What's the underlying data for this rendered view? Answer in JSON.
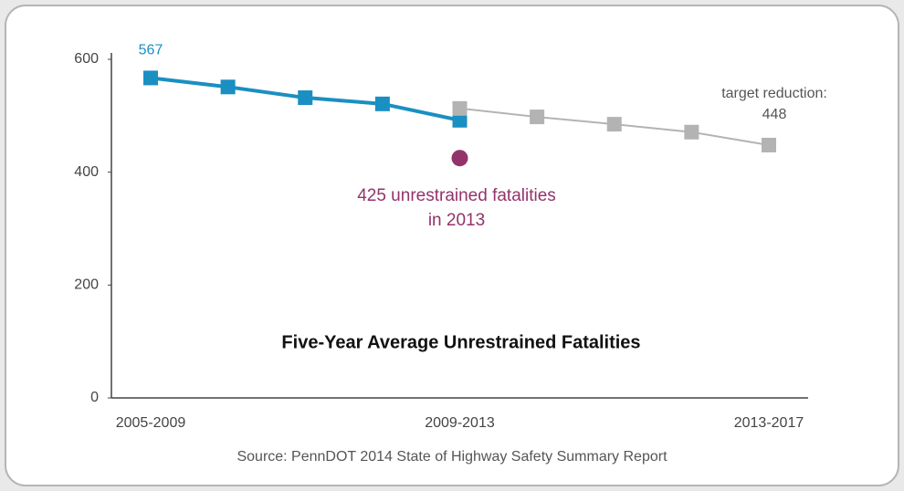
{
  "chart_data": {
    "type": "line",
    "title": "Five-Year Average Unrestrained Fatalities",
    "source": "Source: PennDOT 2014 State of Highway Safety Summary Report",
    "categories": [
      "2005-2009",
      null,
      null,
      null,
      "2009-2013",
      null,
      null,
      null,
      "2013-2017"
    ],
    "series": [
      {
        "color": "#1a8fc2",
        "marker": "square",
        "values": [
          567,
          551,
          532,
          521,
          492,
          null,
          null,
          null,
          null
        ],
        "value_labels": [
          "567",
          null,
          null,
          null,
          null,
          null,
          null,
          null,
          null
        ]
      },
      {
        "color": "#b3b3b3",
        "marker": "square",
        "values": [
          null,
          null,
          null,
          null,
          513,
          498,
          485,
          471,
          448
        ],
        "value_labels": [
          null,
          null,
          null,
          null,
          null,
          null,
          null,
          null,
          "448"
        ],
        "label_prefix": "target reduction:"
      },
      {
        "color": "#93336b",
        "marker": "circle",
        "values": [
          null,
          null,
          null,
          null,
          425,
          null,
          null,
          null,
          null
        ]
      }
    ],
    "annotation": [
      "425 unrestrained fatalities",
      "in 2013"
    ],
    "ylim": [
      0,
      600
    ],
    "yticks": [
      0,
      200,
      400,
      600
    ],
    "grid": false
  }
}
